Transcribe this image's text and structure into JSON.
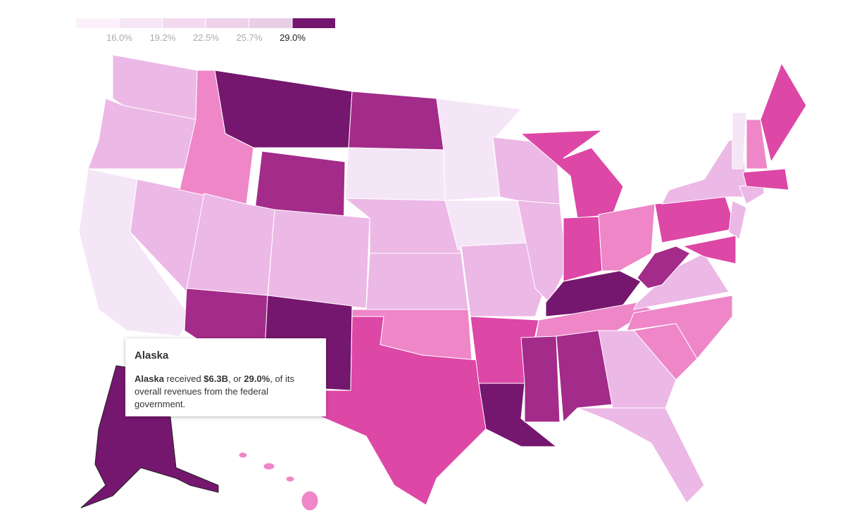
{
  "legend": {
    "colors": [
      "#fcf1fb",
      "#f7e6f6",
      "#f4daf0",
      "#efd2ea",
      "#e9cfe6",
      "#73176e"
    ],
    "labels": [
      "16.0%",
      "19.2%",
      "22.5%",
      "25.7%",
      "29.0%"
    ],
    "active": 4
  },
  "tooltip": {
    "title": "Alaska",
    "body": [
      {
        "text": "Alaska",
        "bold": true
      },
      {
        "text": " received ",
        "bold": false
      },
      {
        "text": "$6.3B",
        "bold": true
      },
      {
        "text": ", or ",
        "bold": false
      },
      {
        "text": "29.0%",
        "bold": true
      },
      {
        "text": ", of its overall revenues from the federal government.",
        "bold": false
      }
    ]
  }
}
